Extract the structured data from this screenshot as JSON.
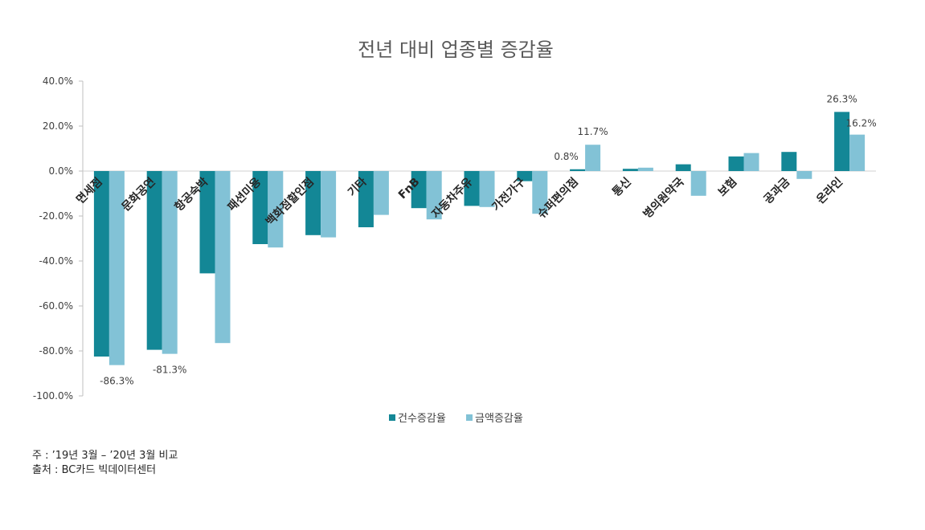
{
  "chart_data": {
    "type": "bar",
    "title": "전년 대비 업종별 증감율",
    "categories": [
      "면세점",
      "문화공연",
      "항공숙박",
      "패션미용",
      "백화점할인점",
      "기타",
      "FnB",
      "자동차주유",
      "가전가구",
      "슈퍼편의점",
      "통신",
      "병의원약국",
      "보험",
      "공과금",
      "온라인"
    ],
    "series": [
      {
        "name": "건수증감율",
        "color": "#138796",
        "values": [
          -82.5,
          -79.5,
          -45.5,
          -32.5,
          -28.5,
          -25.0,
          -16.5,
          -15.5,
          -4.5,
          0.8,
          1.0,
          3.0,
          6.5,
          8.5,
          26.3
        ]
      },
      {
        "name": "금액증감율",
        "color": "#82c2d6",
        "values": [
          -86.3,
          -81.3,
          -76.5,
          -34.0,
          -29.5,
          -19.5,
          -21.5,
          -16.0,
          -19.0,
          11.7,
          1.5,
          -11.0,
          8.0,
          -3.5,
          16.2
        ]
      }
    ],
    "ylim": [
      -100,
      40
    ],
    "yticks": [
      "40.0%",
      "20.0%",
      "0.0%",
      "-20.0%",
      "-40.0%",
      "-60.0%",
      "-80.0%",
      "-100.0%"
    ],
    "ytick_values": [
      40,
      20,
      0,
      -20,
      -40,
      -60,
      -80,
      -100
    ],
    "data_labels": [
      {
        "category": "면세점",
        "series": 1,
        "text": "-86.3%"
      },
      {
        "category": "문화공연",
        "series": 1,
        "text": "-81.3%"
      },
      {
        "category": "슈퍼편의점",
        "series": 0,
        "text": "0.8%"
      },
      {
        "category": "슈퍼편의점",
        "series": 1,
        "text": "11.7%"
      },
      {
        "category": "온라인",
        "series": 0,
        "text": "26.3%"
      },
      {
        "category": "온라인",
        "series": 1,
        "text": "16.2%"
      }
    ],
    "legend_position": "bottom",
    "grid": false
  },
  "notes": {
    "line1": "주 : ’19년 3월 – ’20년 3월 비교",
    "line2": "출처 : BC카드 빅데이터센터"
  }
}
